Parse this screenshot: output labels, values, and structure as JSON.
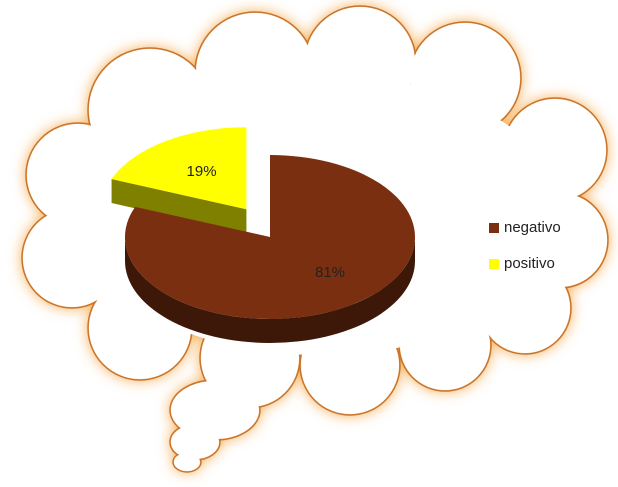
{
  "chart_data": {
    "type": "pie",
    "categories": [
      "negativo",
      "positivo"
    ],
    "values": [
      81,
      19
    ],
    "value_labels": [
      "81%",
      "19%"
    ],
    "colors": [
      "#7a3010",
      "#ffff00"
    ],
    "legend": "right"
  }
}
